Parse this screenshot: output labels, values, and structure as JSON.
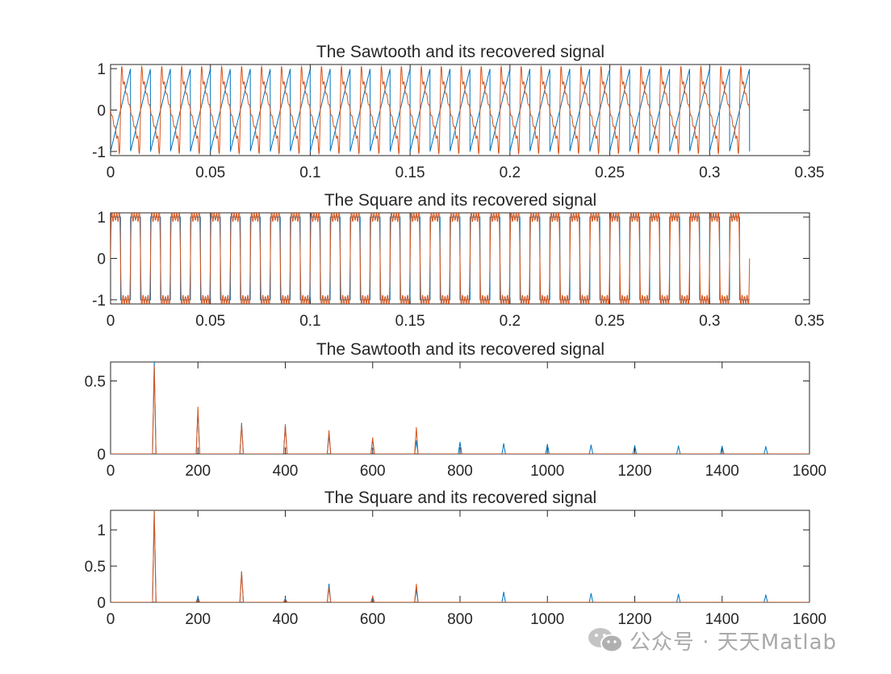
{
  "colors": {
    "original": "#0072BD",
    "recovered": "#D95319",
    "axes": "#262626"
  },
  "watermark": {
    "text": "公众号 · 天天Matlab",
    "icon": "wechat-icon"
  },
  "chart_data": [
    {
      "type": "line",
      "title": "The Sawtooth and its recovered signal",
      "xlim": [
        0,
        0.35
      ],
      "ylim": [
        -1.1,
        1.1
      ],
      "xticks": [
        0,
        0.05,
        0.1,
        0.15,
        0.2,
        0.25,
        0.3,
        0.35
      ],
      "xtick_labels": [
        "0",
        "0.05",
        "0.1",
        "0.15",
        "0.2",
        "0.25",
        "0.3",
        "0.35"
      ],
      "yticks": [
        -1,
        0,
        1
      ],
      "ytick_labels": [
        "-1",
        "0",
        "1"
      ],
      "signal": {
        "waveform": "sawtooth",
        "frequency_hz": 100,
        "amplitude": 1,
        "t_start": 0,
        "t_end": 0.32
      },
      "series": [
        {
          "role": "original",
          "values_desc": "sawtooth"
        },
        {
          "role": "recovered",
          "harmonics": [
            1,
            2,
            3,
            4,
            5,
            6,
            7
          ]
        }
      ]
    },
    {
      "type": "line",
      "title": "The Square and its recovered signal",
      "xlim": [
        0,
        0.35
      ],
      "ylim": [
        -1.1,
        1.1
      ],
      "xticks": [
        0,
        0.05,
        0.1,
        0.15,
        0.2,
        0.25,
        0.3,
        0.35
      ],
      "xtick_labels": [
        "0",
        "0.05",
        "0.1",
        "0.15",
        "0.2",
        "0.25",
        "0.3",
        "0.35"
      ],
      "yticks": [
        -1,
        0,
        1
      ],
      "ytick_labels": [
        "-1",
        "0",
        "1"
      ],
      "signal": {
        "waveform": "square",
        "frequency_hz": 100,
        "amplitude": 1,
        "t_start": 0,
        "t_end": 0.32
      },
      "series": [
        {
          "role": "original",
          "values_desc": "square"
        },
        {
          "role": "recovered",
          "harmonics": [
            1,
            3,
            5,
            7
          ]
        }
      ]
    },
    {
      "type": "line",
      "title": "The Sawtooth and its recovered signal",
      "xlim": [
        0,
        1600
      ],
      "ylim": [
        0,
        0.63
      ],
      "xticks": [
        0,
        200,
        400,
        600,
        800,
        1000,
        1200,
        1400,
        1600
      ],
      "xtick_labels": [
        "0",
        "200",
        "400",
        "600",
        "800",
        "1000",
        "1200",
        "1400",
        "1600"
      ],
      "yticks": [
        0,
        0.5
      ],
      "ytick_labels": [
        "0",
        "0.5"
      ],
      "peak_halfwidth_hz": 4,
      "series": [
        {
          "role": "original",
          "peaks": [
            [
              100,
              0.63
            ],
            [
              200,
              0.3
            ],
            [
              300,
              0.21
            ],
            [
              400,
              0.2
            ],
            [
              500,
              0.13
            ],
            [
              600,
              0.1
            ],
            [
              700,
              0.09
            ],
            [
              800,
              0.08
            ],
            [
              900,
              0.07
            ],
            [
              1000,
              0.065
            ],
            [
              1100,
              0.06
            ],
            [
              1200,
              0.057
            ],
            [
              1300,
              0.054
            ],
            [
              1400,
              0.052
            ],
            [
              1500,
              0.05
            ]
          ]
        },
        {
          "role": "recovered",
          "peaks": [
            [
              100,
              0.6
            ],
            [
              200,
              0.32
            ],
            [
              300,
              0.2
            ],
            [
              400,
              0.2
            ],
            [
              500,
              0.16
            ],
            [
              600,
              0.11
            ],
            [
              700,
              0.18
            ]
          ]
        }
      ]
    },
    {
      "type": "line",
      "title": "The Square and its recovered signal",
      "xlim": [
        0,
        1600
      ],
      "ylim": [
        0,
        1.27
      ],
      "xticks": [
        0,
        200,
        400,
        600,
        800,
        1000,
        1200,
        1400,
        1600
      ],
      "xtick_labels": [
        "0",
        "200",
        "400",
        "600",
        "800",
        "1000",
        "1200",
        "1400",
        "1600"
      ],
      "yticks": [
        0,
        0.5,
        1
      ],
      "ytick_labels": [
        "0",
        "0.5",
        "1"
      ],
      "peak_halfwidth_hz": 4,
      "series": [
        {
          "role": "original",
          "peaks": [
            [
              100,
              1.27
            ],
            [
              200,
              0.07
            ],
            [
              300,
              0.42
            ],
            [
              400,
              0.05
            ],
            [
              500,
              0.25
            ],
            [
              600,
              0.05
            ],
            [
              700,
              0.18
            ],
            [
              900,
              0.14
            ],
            [
              1100,
              0.12
            ],
            [
              1300,
              0.11
            ],
            [
              1500,
              0.1
            ]
          ]
        },
        {
          "role": "recovered",
          "peaks": [
            [
              100,
              1.27
            ],
            [
              200,
              0.03
            ],
            [
              300,
              0.42
            ],
            [
              400,
              0.03
            ],
            [
              500,
              0.2
            ],
            [
              600,
              0.08
            ],
            [
              700,
              0.25
            ]
          ]
        }
      ]
    }
  ]
}
